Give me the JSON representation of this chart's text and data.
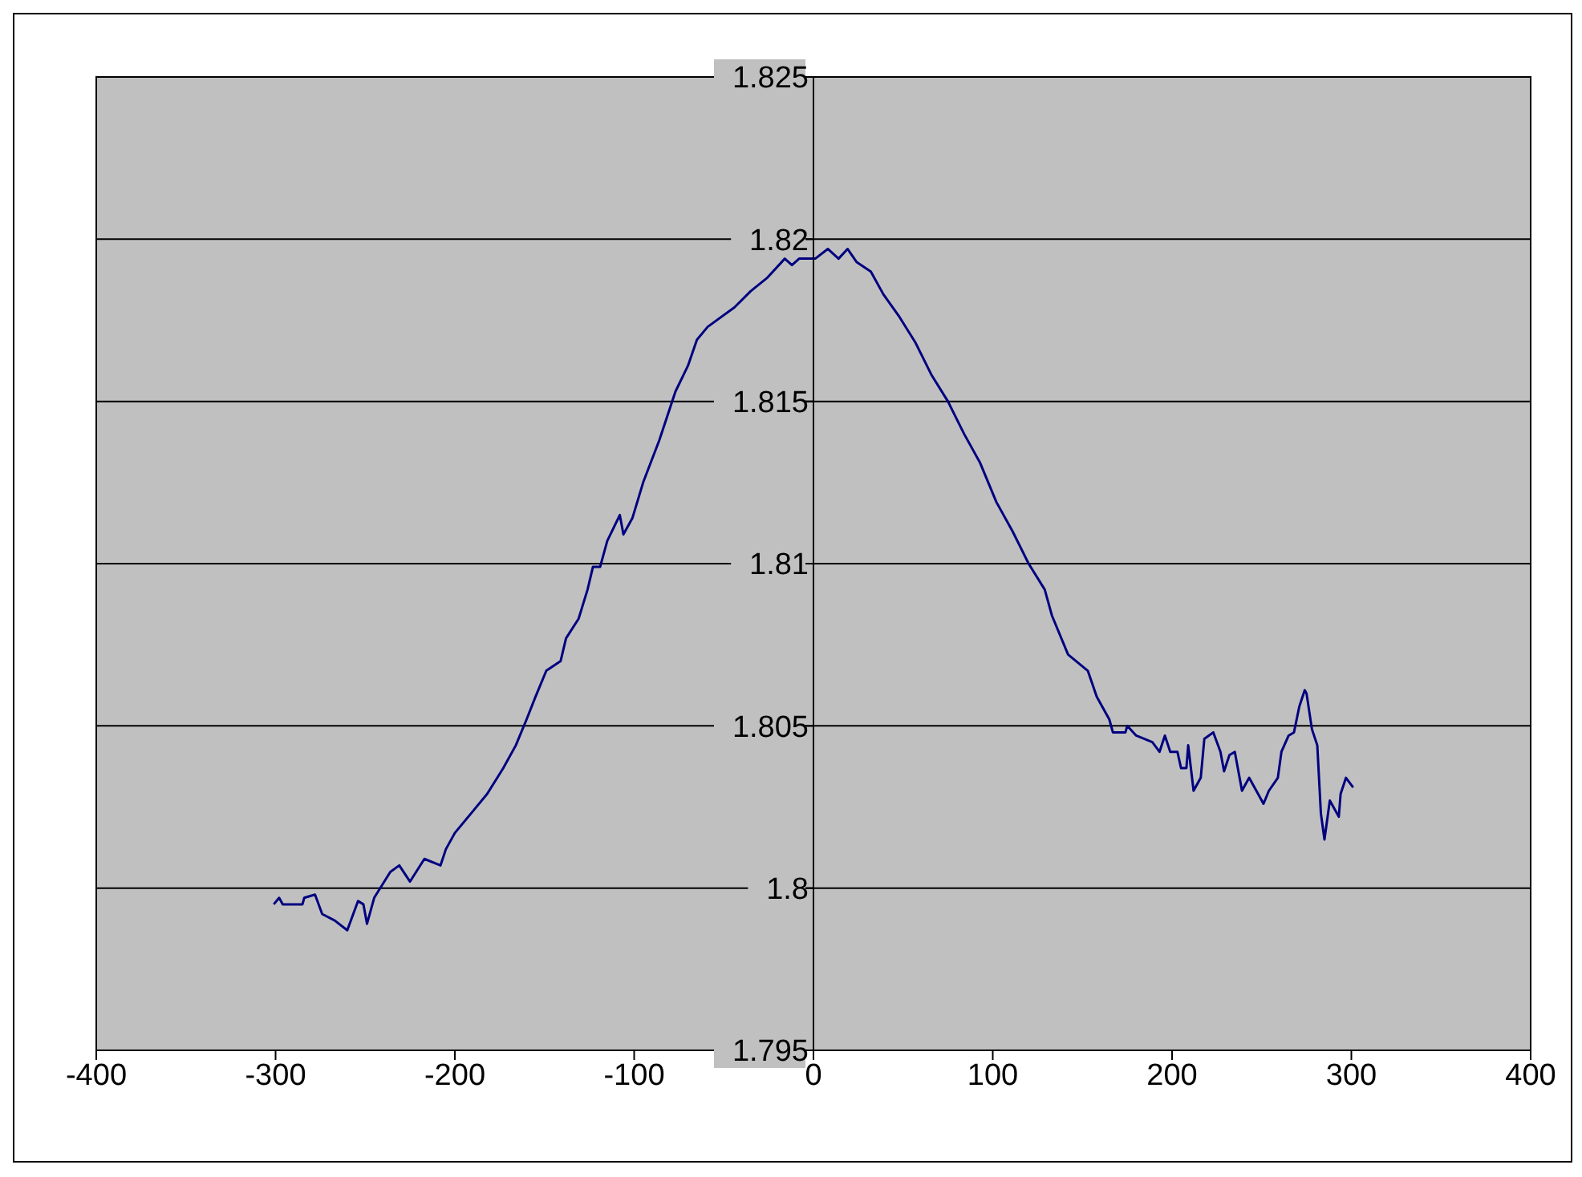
{
  "chart_data": {
    "type": "line",
    "xlim": [
      -400,
      400
    ],
    "xticks": [
      -400,
      -300,
      -200,
      -100,
      0,
      100,
      200,
      300,
      400
    ],
    "ylim": [
      1.795,
      1.825
    ],
    "yticks": [
      1.795,
      1.8,
      1.805,
      1.81,
      1.815,
      1.82,
      1.825
    ],
    "grid": "y",
    "legend": false,
    "marker": "none",
    "line_style": "solid",
    "series": [
      {
        "color": "#000080",
        "x": [
          -301,
          -298,
          -296,
          -285,
          -284,
          -278,
          -274,
          -267,
          -260,
          -254,
          -251,
          -249,
          -245,
          -236,
          -231,
          -225,
          -217,
          -208,
          -205,
          -200,
          -191,
          -182,
          -173,
          -166,
          -160,
          -155,
          -149,
          -141,
          -138,
          -131,
          -126,
          -123,
          -119,
          -115,
          -108,
          -106,
          -101,
          -95,
          -86,
          -77,
          -70,
          -65,
          -59,
          -44,
          -35,
          -26,
          -16,
          -12,
          -8,
          1,
          8,
          14,
          19,
          24,
          32,
          39,
          48,
          57,
          66,
          75,
          84,
          93,
          102,
          111,
          120,
          129,
          133,
          142,
          153,
          158,
          165,
          167,
          174,
          175,
          180,
          189,
          193,
          196,
          199,
          203,
          205,
          208,
          209,
          212,
          216,
          218,
          223,
          227,
          229,
          232,
          235,
          238,
          239,
          243,
          247,
          251,
          254,
          259,
          261,
          265,
          268,
          271,
          274,
          275,
          278,
          281,
          283,
          285,
          288,
          293,
          294,
          297,
          301
        ],
        "values": [
          1.7995,
          1.7997,
          1.7995,
          1.7995,
          1.7997,
          1.7998,
          1.7992,
          1.799,
          1.7987,
          1.7996,
          1.7995,
          1.7989,
          1.7997,
          1.8005,
          1.8007,
          1.8002,
          1.8009,
          1.8007,
          1.8012,
          1.8017,
          1.8023,
          1.8029,
          1.8037,
          1.8044,
          1.8052,
          1.8059,
          1.8067,
          1.807,
          1.8077,
          1.8083,
          1.8092,
          1.8099,
          1.8099,
          1.8107,
          1.8115,
          1.8109,
          1.8114,
          1.8125,
          1.8138,
          1.8153,
          1.8161,
          1.8169,
          1.8173,
          1.8179,
          1.8184,
          1.8188,
          1.8194,
          1.8192,
          1.8194,
          1.8194,
          1.8197,
          1.8194,
          1.8197,
          1.8193,
          1.819,
          1.8183,
          1.8176,
          1.8168,
          1.8158,
          1.815,
          1.814,
          1.8131,
          1.8119,
          1.811,
          1.81,
          1.8092,
          1.8084,
          1.8072,
          1.8067,
          1.8059,
          1.8052,
          1.8048,
          1.8048,
          1.805,
          1.8047,
          1.8045,
          1.8042,
          1.8047,
          1.8042,
          1.8042,
          1.8037,
          1.8037,
          1.8044,
          1.803,
          1.8034,
          1.8046,
          1.8048,
          1.8042,
          1.8036,
          1.8041,
          1.8042,
          1.8033,
          1.803,
          1.8034,
          1.803,
          1.8026,
          1.803,
          1.8034,
          1.8042,
          1.8047,
          1.8048,
          1.8056,
          1.8061,
          1.806,
          1.8049,
          1.8044,
          1.8023,
          1.8015,
          1.8027,
          1.8022,
          1.8029,
          1.8034,
          1.8031
        ]
      }
    ]
  }
}
